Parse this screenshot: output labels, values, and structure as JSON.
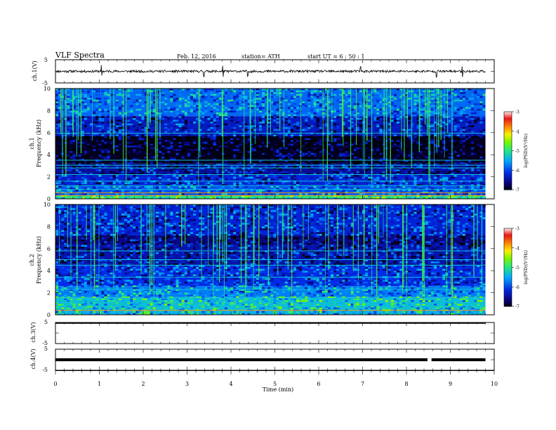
{
  "header": {
    "title": "VLF  Spectra",
    "date": "Feb. 12, 2016",
    "station": "station= ATH",
    "start_ut": "start  UT  =    6  : 50 : 1"
  },
  "chart_data": [
    {
      "type": "line",
      "panel": "ch1-waveform",
      "ylabel": "ch.1(V)",
      "yticks": [
        "5",
        "-5"
      ],
      "ylim": [
        -5,
        5
      ],
      "xlim": [
        0,
        9.8
      ],
      "series": [
        {
          "baseline_v": 0.0,
          "noise_v": 0.5,
          "spike_minutes": [
            1.05,
            3.38,
            3.82,
            4.38,
            6.95,
            8.68,
            9.27
          ]
        }
      ]
    },
    {
      "type": "heatmap",
      "panel": "ch1-spectrogram",
      "ylabel": "Frequency  (kHz)",
      "channel_label": "ch.1",
      "yticks": [
        "0",
        "2",
        "4",
        "6",
        "8",
        "10"
      ],
      "ylim": [
        0,
        10
      ],
      "xlim": [
        0,
        9.8
      ],
      "bands": [
        {
          "f0": 0.0,
          "f1": 0.3,
          "level": -5.0
        },
        {
          "f0": 0.3,
          "f1": 1.2,
          "level": -5.9
        },
        {
          "f0": 1.2,
          "f1": 2.2,
          "level": -6.2
        },
        {
          "f0": 2.2,
          "f1": 3.2,
          "level": -6.5
        },
        {
          "f0": 3.2,
          "f1": 5.7,
          "level": -6.9
        },
        {
          "f0": 5.7,
          "f1": 7.5,
          "level": -6.3
        },
        {
          "f0": 7.5,
          "f1": 10.0,
          "level": -5.8
        }
      ],
      "lines_khz": [
        0.3,
        0.55,
        0.85,
        1.2,
        1.6,
        2.2,
        2.8,
        3.05,
        3.5,
        5.95
      ],
      "colorbar": {
        "label": "log(PSD)(V²/Hz)",
        "ticks": [
          "-3",
          "-4",
          "-5",
          "-6",
          "-7"
        ],
        "range": [
          -7,
          -3
        ]
      }
    },
    {
      "type": "heatmap",
      "panel": "ch2-spectrogram",
      "ylabel": "Frequency  (kHz)",
      "channel_label": "ch.2",
      "yticks": [
        "0",
        "2",
        "4",
        "6",
        "8",
        "10"
      ],
      "ylim": [
        0,
        10
      ],
      "xlim": [
        0,
        9.8
      ],
      "bands": [
        {
          "f0": 0.0,
          "f1": 0.4,
          "level": -5.4
        },
        {
          "f0": 0.4,
          "f1": 1.6,
          "level": -5.3
        },
        {
          "f0": 1.6,
          "f1": 2.6,
          "level": -5.7
        },
        {
          "f0": 2.6,
          "f1": 4.5,
          "level": -6.1
        },
        {
          "f0": 4.5,
          "f1": 6.4,
          "level": -6.4
        },
        {
          "f0": 6.4,
          "f1": 7.2,
          "level": -6.6
        },
        {
          "f0": 7.2,
          "f1": 10.0,
          "level": -6.2
        }
      ],
      "lines_khz": [
        0.4,
        0.8,
        1.1,
        1.5,
        2.3,
        3.4,
        4.5,
        5.0,
        5.8
      ],
      "colorbar": {
        "label": "log(PSD)(V²/Hz)",
        "ticks": [
          "-3",
          "-4",
          "-5",
          "-6",
          "-7"
        ],
        "range": [
          -7,
          -3
        ]
      }
    },
    {
      "type": "line",
      "panel": "ch3-waveform",
      "ylabel": "ch.3(V)",
      "yticks": [
        "5",
        "-5"
      ],
      "ylim": [
        -5,
        5
      ],
      "xlim": [
        0,
        9.8
      ],
      "series": [
        {
          "baseline_v": 5.0,
          "noise_v": 0.05
        }
      ]
    },
    {
      "type": "line",
      "panel": "ch4-waveform",
      "ylabel": "ch.4(V)",
      "yticks": [
        "5",
        "-5"
      ],
      "ylim": [
        -5,
        5
      ],
      "xlim": [
        0,
        9.8
      ],
      "series": [
        {
          "baseline_v": 0.0,
          "noise_v": 0.3,
          "gap_minutes": [
            8.48,
            8.57
          ]
        }
      ]
    },
    {
      "type": "axis",
      "panel": "time-axis",
      "xlabel": "Time  (min)",
      "xticks": [
        "0",
        "1",
        "2",
        "3",
        "4",
        "5",
        "6",
        "7",
        "8",
        "9",
        "10"
      ],
      "xlim": [
        0,
        10
      ]
    }
  ]
}
